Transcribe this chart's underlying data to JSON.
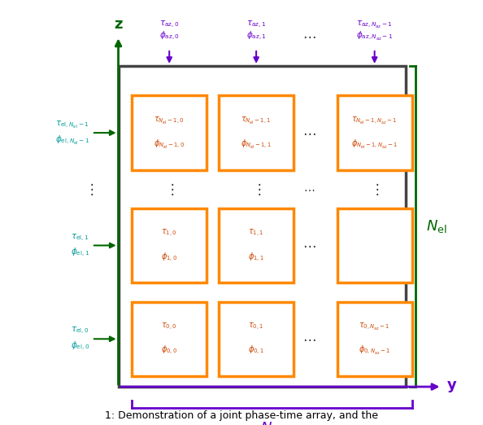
{
  "fig_width": 5.94,
  "fig_height": 5.22,
  "dpi": 100,
  "bg_color": "#ffffff",
  "outer_edge_color": "#444444",
  "outer_face_color": "#ffffff",
  "outer_lw": 2.5,
  "cell_edge_color": "#ff8800",
  "cell_face_color": "#ffffff",
  "cell_lw": 2.5,
  "arrow_color_top": "#6600cc",
  "arrow_color_left": "#006600",
  "label_color_top": "#6600cc",
  "label_color_left": "#009999",
  "cell_text_color": "#cc4400",
  "z_axis_color": "#006600",
  "y_axis_color": "#6600cc",
  "Nel_color": "#006600",
  "Naz_color": "#6600cc",
  "dots_color": "#333333",
  "caption_color": "#000000",
  "caption": "1: Demonstration of a joint phase-time array, and the"
}
